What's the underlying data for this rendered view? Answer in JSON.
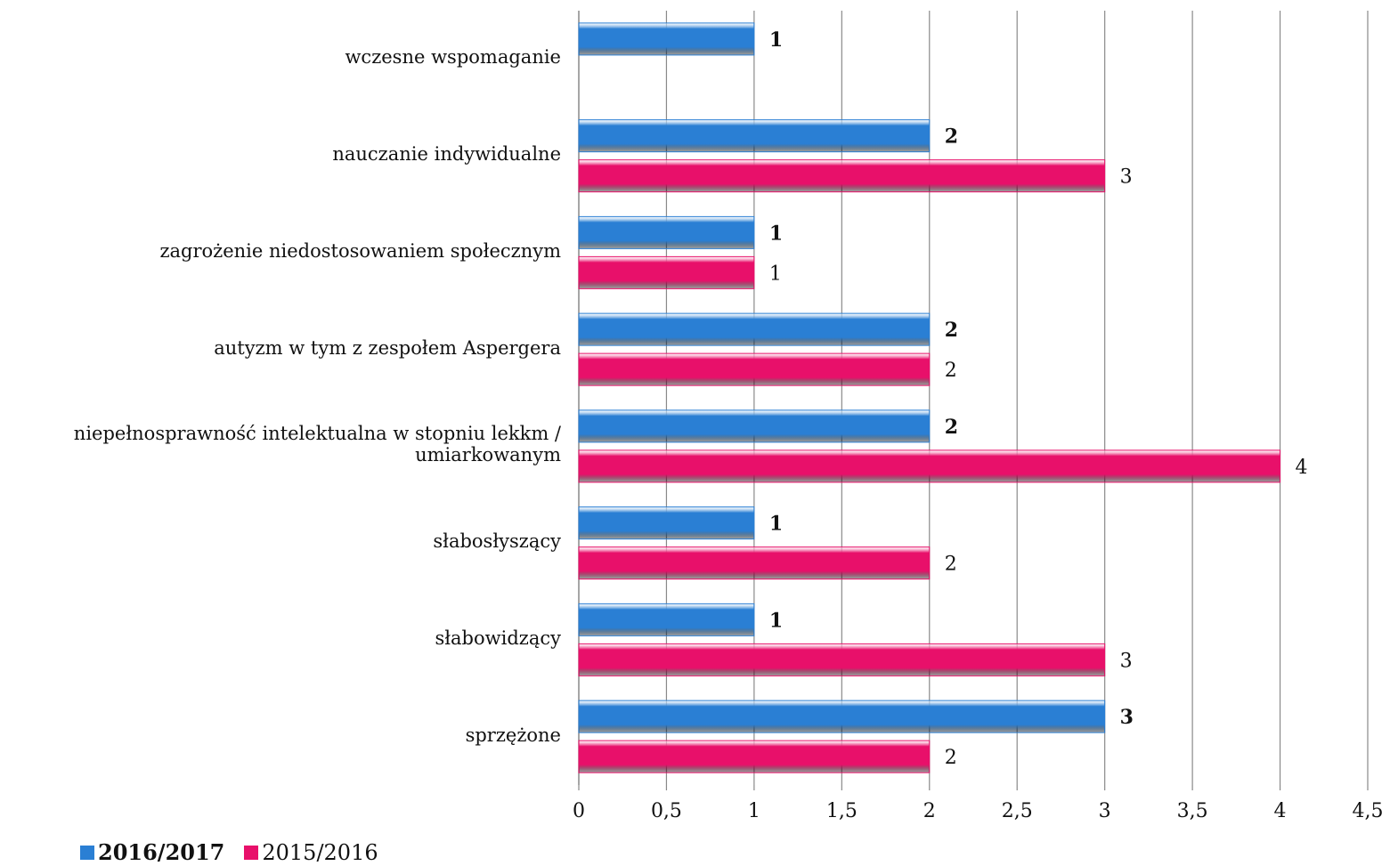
{
  "chart_data": {
    "type": "bar",
    "orientation": "horizontal",
    "categories": [
      "wczesne wspomaganie",
      "nauczanie indywidualne",
      "zagrożenie niedostosowaniem społecznym",
      "autyzm w tym z zespołem Aspergera",
      "niepełnosprawność intelektualna w stopniu lekkm / umiarkowanym",
      "słabosłyszący",
      "słabowidzący",
      "sprzężone"
    ],
    "series": [
      {
        "name": "2016/2017",
        "values": [
          1,
          2,
          1,
          2,
          2,
          1,
          1,
          3
        ],
        "value_labels": [
          "1",
          "2",
          "1",
          "2",
          "2",
          "1",
          "1",
          "3"
        ],
        "color": "#2a7fd4",
        "label_bold": true
      },
      {
        "name": "2015/2016",
        "values": [
          null,
          3,
          1,
          2,
          4,
          2,
          3,
          2
        ],
        "value_labels": [
          "",
          "3",
          "1",
          "2",
          "4",
          "2",
          "3",
          "2"
        ],
        "color": "#e8106a",
        "label_bold": false
      }
    ],
    "xlim": [
      0,
      4.5
    ],
    "x_ticks": [
      0,
      0.5,
      1,
      1.5,
      2,
      2.5,
      3,
      3.5,
      4,
      4.5
    ],
    "x_tick_labels": [
      "0",
      "0,5",
      "1",
      "1,5",
      "2",
      "2,5",
      "3",
      "3,5",
      "4",
      "4,5"
    ],
    "grid": "vertical",
    "legend_position": "bottom-left"
  }
}
